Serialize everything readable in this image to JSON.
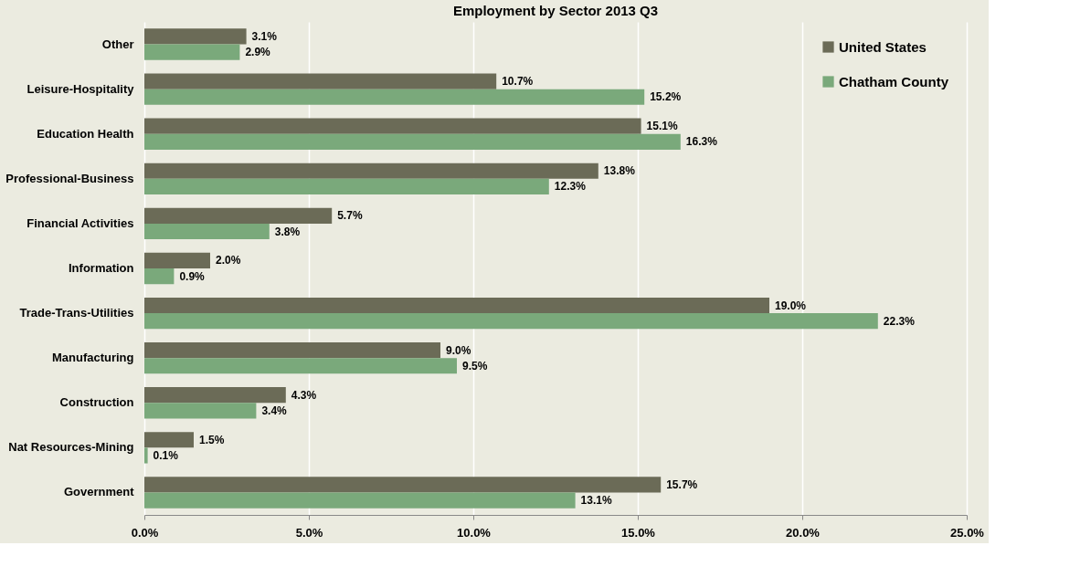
{
  "chart_data": {
    "type": "bar",
    "orientation": "horizontal",
    "title": "Employment by Sector  2013 Q3",
    "categories": [
      "Other",
      "Leisure-Hospitality",
      "Education Health",
      "Professional-Business",
      "Financial Activities",
      "Information",
      "Trade-Trans-Utilities",
      "Manufacturing",
      "Construction",
      "Nat Resources-Mining",
      "Government"
    ],
    "series": [
      {
        "name": "United States",
        "color": "#6b6b57",
        "values": [
          3.1,
          10.7,
          15.1,
          13.8,
          5.7,
          2.0,
          19.0,
          9.0,
          4.3,
          1.5,
          15.7
        ],
        "value_labels": [
          "3.1%",
          "10.7%",
          "15.1%",
          "13.8%",
          "5.7%",
          "2.0%",
          "19.0%",
          "9.0%",
          "4.3%",
          "1.5%",
          "15.7%"
        ]
      },
      {
        "name": "Chatham County",
        "color": "#7aa97b",
        "values": [
          2.9,
          15.2,
          16.3,
          12.3,
          3.8,
          0.9,
          22.3,
          9.5,
          3.4,
          0.1,
          13.1
        ],
        "value_labels": [
          "2.9%",
          "15.2%",
          "16.3%",
          "12.3%",
          "3.8%",
          "0.9%",
          "22.3%",
          "9.5%",
          "3.4%",
          "0.1%",
          "13.1%"
        ]
      }
    ],
    "xlim": [
      0,
      25
    ],
    "xticks": [
      {
        "value": 0,
        "label": "0.0%"
      },
      {
        "value": 5,
        "label": "5.0%"
      },
      {
        "value": 10,
        "label": "10.0%"
      },
      {
        "value": 15,
        "label": "15.0%"
      },
      {
        "value": 20,
        "label": "20.0%"
      },
      {
        "value": 25,
        "label": "25.0%"
      }
    ],
    "grid": "x",
    "legend": "top right"
  }
}
